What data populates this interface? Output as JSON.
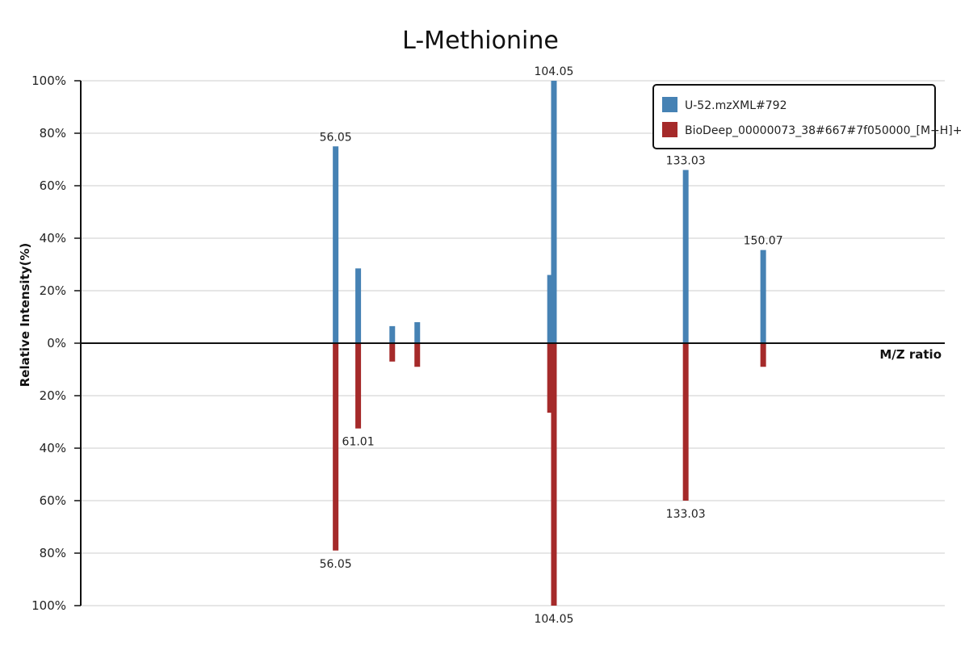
{
  "chart_data": {
    "type": "bar",
    "title": "L-Methionine",
    "xlabel": "M/Z ratio",
    "ylabel": "Relative Intensity(%)",
    "ylim": [
      -100,
      100
    ],
    "xlim": [
      0,
      190
    ],
    "y_ticks": [
      {
        "value": 100,
        "label": "100%"
      },
      {
        "value": 80,
        "label": "80%"
      },
      {
        "value": 60,
        "label": "60%"
      },
      {
        "value": 40,
        "label": "40%"
      },
      {
        "value": 20,
        "label": "20%"
      },
      {
        "value": 0,
        "label": "0%"
      },
      {
        "value": -20,
        "label": "20%"
      },
      {
        "value": -40,
        "label": "40%"
      },
      {
        "value": -60,
        "label": "60%"
      },
      {
        "value": -80,
        "label": "80%"
      },
      {
        "value": -100,
        "label": "100%"
      }
    ],
    "grid": true,
    "legend_position": "top-right",
    "series": [
      {
        "name": "U-52.mzXML#792",
        "color": "#4682b4",
        "direction": "up",
        "peaks": [
          {
            "mz": 56.05,
            "intensity": 75,
            "label": "56.05"
          },
          {
            "mz": 61.01,
            "intensity": 28.5,
            "label": ""
          },
          {
            "mz": 68.5,
            "intensity": 6.5,
            "label": ""
          },
          {
            "mz": 74.0,
            "intensity": 8,
            "label": ""
          },
          {
            "mz": 103.2,
            "intensity": 26,
            "label": ""
          },
          {
            "mz": 104.05,
            "intensity": 100,
            "label": "104.05"
          },
          {
            "mz": 133.03,
            "intensity": 66,
            "label": "133.03"
          },
          {
            "mz": 150.07,
            "intensity": 35.5,
            "label": "150.07"
          }
        ]
      },
      {
        "name": "BioDeep_00000073_38#667#7f050000_[M+H]+",
        "color": "#a52a2a",
        "direction": "down",
        "peaks": [
          {
            "mz": 56.05,
            "intensity": 79,
            "label": "56.05"
          },
          {
            "mz": 61.01,
            "intensity": 32.5,
            "label": "61.01"
          },
          {
            "mz": 68.5,
            "intensity": 7,
            "label": ""
          },
          {
            "mz": 74.0,
            "intensity": 9,
            "label": ""
          },
          {
            "mz": 103.2,
            "intensity": 26.5,
            "label": ""
          },
          {
            "mz": 104.05,
            "intensity": 100,
            "label": "104.05"
          },
          {
            "mz": 133.03,
            "intensity": 60,
            "label": "133.03"
          },
          {
            "mz": 150.07,
            "intensity": 9,
            "label": ""
          }
        ]
      }
    ]
  }
}
